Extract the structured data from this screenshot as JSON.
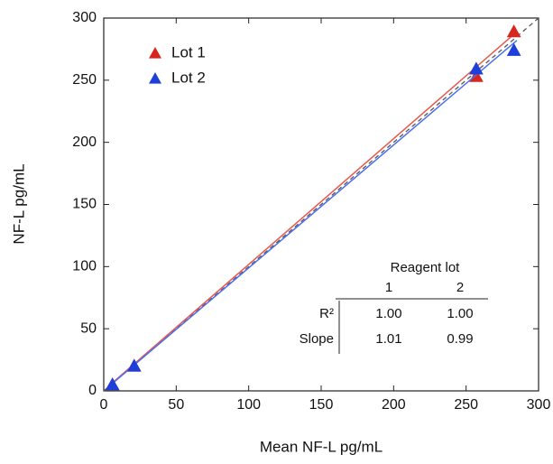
{
  "chart_data": {
    "type": "scatter",
    "x_label": "Mean NF-L pg/mL",
    "y_label": "NF-L pg/mL",
    "xlim": [
      0,
      300
    ],
    "ylim": [
      0,
      300
    ],
    "xticks": [
      0,
      50,
      100,
      150,
      200,
      250,
      300
    ],
    "yticks": [
      0,
      50,
      100,
      150,
      200,
      250,
      300
    ],
    "identity_line": true,
    "legend": "upper-left",
    "series": [
      {
        "name": "Lot 1",
        "color": "#d7261e",
        "x": [
          6,
          21,
          257,
          283
        ],
        "values": [
          5,
          20,
          253,
          289
        ],
        "fit": {
          "color": "#e8574c",
          "x": [
            3,
            285
          ],
          "values": [
            3.5,
            289
          ]
        }
      },
      {
        "name": "Lot 2",
        "color": "#1f3fd9",
        "x": [
          6,
          21,
          257,
          283
        ],
        "values": [
          5,
          20,
          259,
          274
        ],
        "fit": {
          "color": "#4a6ff0",
          "x": [
            3,
            285
          ],
          "values": [
            3,
            282
          ]
        }
      }
    ],
    "table": {
      "title": "Reagent lot",
      "columns": [
        "1",
        "2"
      ],
      "rows": [
        {
          "label": "R²",
          "values": [
            "1.00",
            "1.00"
          ]
        },
        {
          "label": "Slope",
          "values": [
            "1.01",
            "0.99"
          ]
        }
      ]
    }
  }
}
